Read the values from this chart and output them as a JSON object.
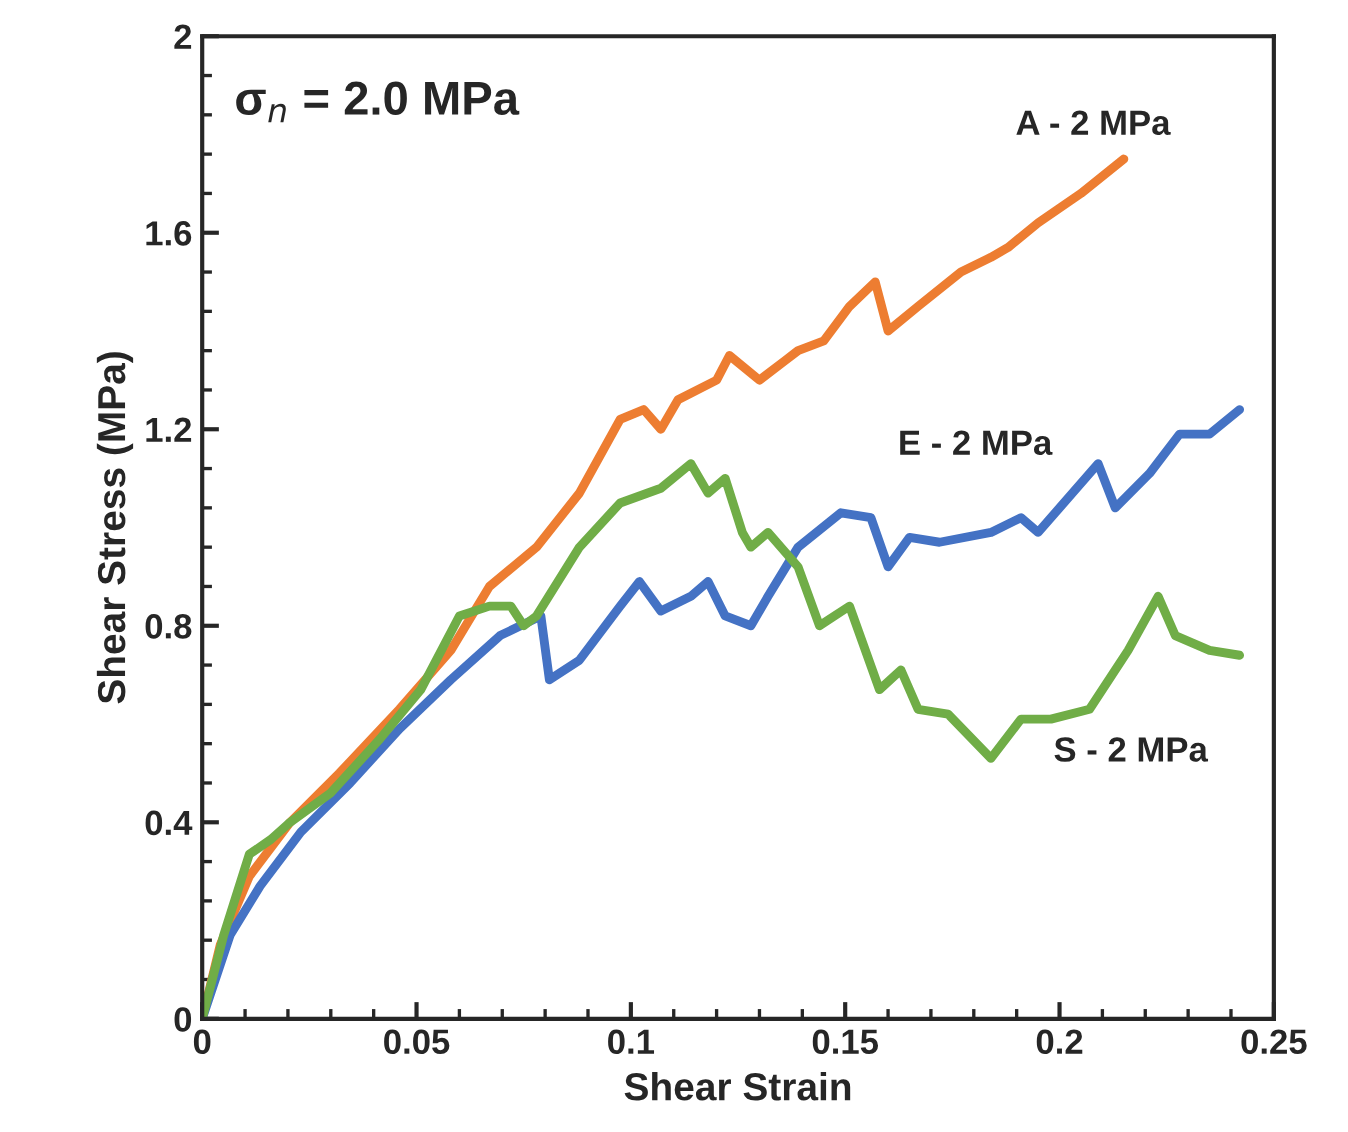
{
  "chart_data": {
    "type": "line",
    "xlabel": "Shear Strain",
    "ylabel": "Shear Stress (MPa)",
    "xlim": [
      0,
      0.25
    ],
    "xticks": [
      0,
      0.05,
      0.1,
      0.15,
      0.2,
      0.25
    ],
    "ylim": [
      0,
      2
    ],
    "yticks": [
      0,
      0.4,
      0.8,
      1.2,
      1.6,
      2
    ],
    "grid": false,
    "marker": "none",
    "line_style": "solid",
    "annotations": [
      "σ$_{n}$ = 2.0 MPa"
    ],
    "series": [
      {
        "name": "A - 2 MPa",
        "color": "#ed7d31",
        "x": [
          0,
          0.0042,
          0.011,
          0.0205,
          0.032,
          0.046,
          0.058,
          0.067,
          0.078,
          0.088,
          0.0975,
          0.103,
          0.107,
          0.111,
          0.12,
          0.123,
          0.13,
          0.136,
          0.139,
          0.145,
          0.151,
          0.157,
          0.16,
          0.167,
          0.177,
          0.184,
          0.188,
          0.195,
          0.205,
          0.215
        ],
        "values": [
          0,
          0.15,
          0.29,
          0.4,
          0.5,
          0.63,
          0.75,
          0.88,
          0.96,
          1.07,
          1.22,
          1.24,
          1.2,
          1.26,
          1.3,
          1.35,
          1.3,
          1.34,
          1.36,
          1.38,
          1.45,
          1.5,
          1.4,
          1.45,
          1.52,
          1.55,
          1.57,
          1.62,
          1.68,
          1.75
        ]
      },
      {
        "name": "E - 2 MPa",
        "color": "#4472c4",
        "x": [
          0,
          0.0065,
          0.0135,
          0.023,
          0.0345,
          0.046,
          0.058,
          0.0695,
          0.079,
          0.081,
          0.088,
          0.0975,
          0.102,
          0.107,
          0.114,
          0.118,
          0.122,
          0.128,
          0.132,
          0.139,
          0.149,
          0.156,
          0.16,
          0.165,
          0.172,
          0.184,
          0.191,
          0.195,
          0.209,
          0.213,
          0.221,
          0.228,
          0.235,
          0.242
        ],
        "values": [
          0,
          0.17,
          0.27,
          0.38,
          0.48,
          0.59,
          0.69,
          0.78,
          0.82,
          0.69,
          0.73,
          0.84,
          0.89,
          0.83,
          0.86,
          0.89,
          0.82,
          0.8,
          0.86,
          0.96,
          1.03,
          1.02,
          0.92,
          0.98,
          0.97,
          0.99,
          1.02,
          0.99,
          1.13,
          1.04,
          1.11,
          1.19,
          1.19,
          1.24
        ]
      },
      {
        "name": "S - 2 MPa",
        "color": "#70ad47",
        "x": [
          0,
          0.005,
          0.011,
          0.016,
          0.0205,
          0.03,
          0.0415,
          0.051,
          0.06,
          0.067,
          0.072,
          0.075,
          0.078,
          0.088,
          0.0975,
          0.107,
          0.114,
          0.118,
          0.122,
          0.126,
          0.128,
          0.132,
          0.139,
          0.144,
          0.151,
          0.158,
          0.163,
          0.167,
          0.174,
          0.184,
          0.191,
          0.198,
          0.207,
          0.216,
          0.223,
          0.227,
          0.235,
          0.242
        ],
        "values": [
          0,
          0.17,
          0.335,
          0.365,
          0.4,
          0.46,
          0.57,
          0.67,
          0.82,
          0.84,
          0.84,
          0.8,
          0.82,
          0.96,
          1.05,
          1.08,
          1.13,
          1.07,
          1.1,
          0.99,
          0.96,
          0.99,
          0.92,
          0.8,
          0.84,
          0.67,
          0.71,
          0.63,
          0.62,
          0.53,
          0.61,
          0.61,
          0.63,
          0.75,
          0.86,
          0.78,
          0.75,
          0.74
        ]
      }
    ]
  }
}
